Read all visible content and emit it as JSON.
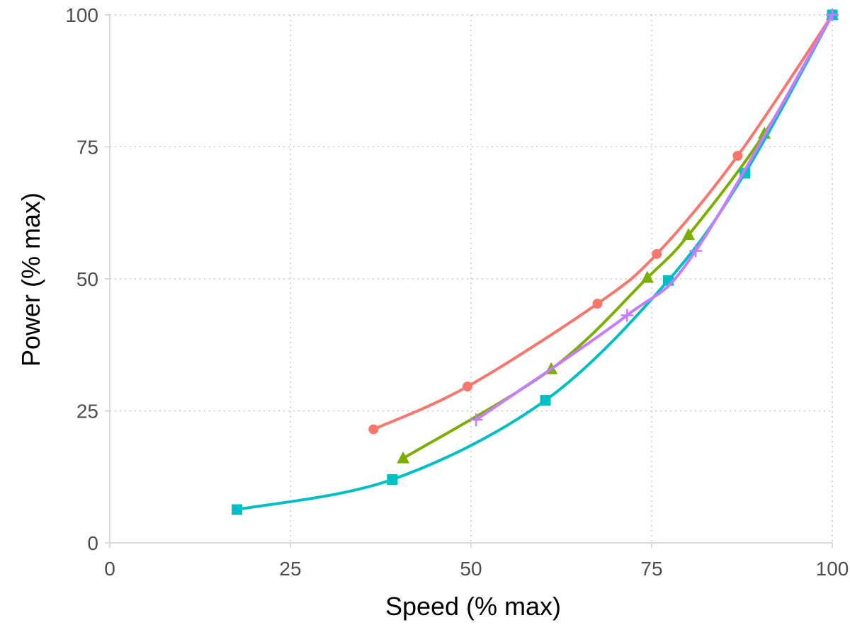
{
  "chart_data": {
    "type": "line",
    "title": "",
    "xlabel": "Speed (% max)",
    "ylabel": "Power (% max)",
    "xlim": [
      0,
      100
    ],
    "ylim": [
      0,
      100
    ],
    "x_ticks": [
      "0",
      "25",
      "50",
      "75",
      "100"
    ],
    "y_ticks": [
      "0",
      "25",
      "50",
      "75",
      "100"
    ],
    "grid": true,
    "legend": "none",
    "series": [
      {
        "color": "#f8766d",
        "marker": "circle",
        "x": [
          36.5,
          49.5,
          67.5,
          75.7,
          86.9,
          100
        ],
        "y": [
          21.5,
          29.6,
          45.3,
          54.7,
          73.3,
          100
        ]
      },
      {
        "color": "#7cae00",
        "marker": "triangle",
        "x": [
          40.6,
          61.1,
          74.4,
          80.1,
          90.6,
          100
        ],
        "y": [
          16.0,
          32.9,
          50.2,
          58.3,
          77.5,
          100
        ]
      },
      {
        "color": "#00bfc4",
        "marker": "square",
        "x": [
          17.6,
          39.1,
          60.3,
          77.3,
          87.9,
          100
        ],
        "y": [
          6.3,
          12.0,
          27.0,
          49.7,
          70.0,
          100
        ]
      },
      {
        "color": "#c77cff",
        "marker": "plus",
        "x": [
          50.7,
          71.6,
          81.1,
          100
        ],
        "y": [
          23.3,
          43.1,
          55.3,
          100
        ]
      }
    ]
  }
}
